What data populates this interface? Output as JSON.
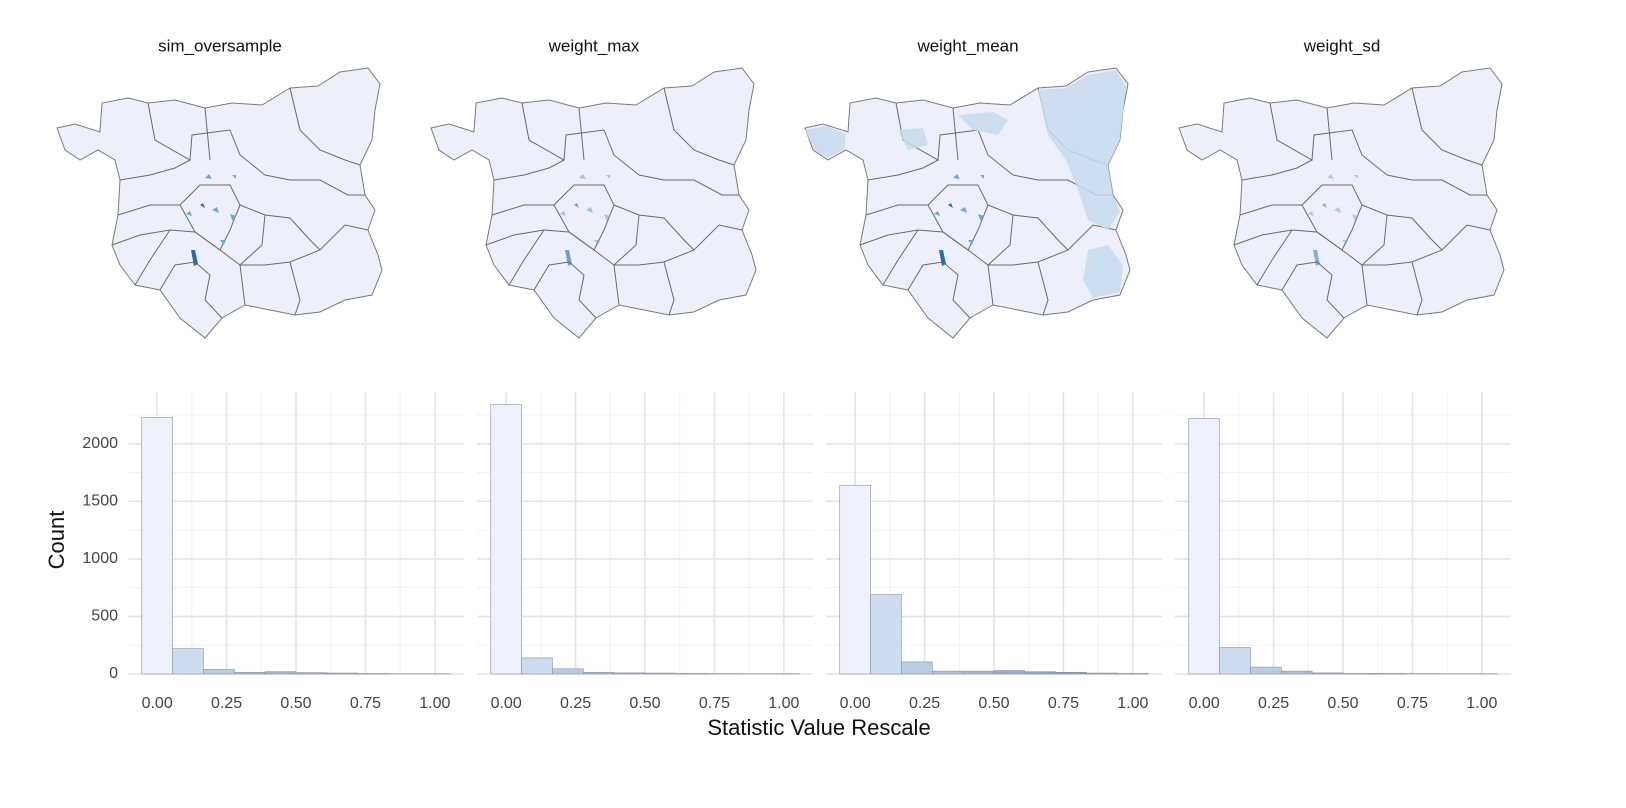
{
  "chart_data": [
    {
      "type": "histogram",
      "title": "sim_oversample",
      "ylabel": "Count",
      "xlabel": "Statistic Value Rescale",
      "bins": [
        -0.0556,
        0.0556,
        0.1667,
        0.2778,
        0.3889,
        0.5,
        0.6111,
        0.7222,
        0.8333,
        0.9444,
        1.0556
      ],
      "values": [
        2230,
        220,
        40,
        15,
        20,
        12,
        8,
        4,
        2,
        2
      ],
      "colors": [
        "#eef0fb",
        "#cddcee",
        "#b6cde3",
        "#a6c2dc",
        "#9cb9d6",
        "#8fb0d0",
        "#85a7ca",
        "#7b9fc5",
        "#7197c0",
        "#678fbb"
      ],
      "xlim": [
        -0.105,
        1.105
      ],
      "ylim": [
        0,
        2450
      ],
      "xticks": [
        {
          "value": 0,
          "label": "0.00"
        },
        {
          "value": 0.25,
          "label": "0.25"
        },
        {
          "value": 0.5,
          "label": "0.50"
        },
        {
          "value": 0.75,
          "label": "0.75"
        },
        {
          "value": 1,
          "label": "1.00"
        }
      ],
      "yticks": [
        0,
        500,
        1000,
        1500,
        2000
      ],
      "xminor": [
        0.125,
        0.375,
        0.625,
        0.875
      ],
      "yminor": [
        250,
        750,
        1250,
        1750,
        2250
      ],
      "ytick_labels": true,
      "grid": true
    },
    {
      "type": "histogram",
      "title": "weight_max",
      "bins": [
        -0.0556,
        0.0556,
        0.1667,
        0.2778,
        0.3889,
        0.5,
        0.6111,
        0.7222,
        0.8333,
        0.9444,
        1.0556
      ],
      "values": [
        2340,
        140,
        45,
        15,
        10,
        8,
        5,
        3,
        2,
        2
      ],
      "colors": [
        "#eef0fb",
        "#cddcee",
        "#b6cde3",
        "#a6c2dc",
        "#9cb9d6",
        "#8fb0d0",
        "#85a7ca",
        "#7b9fc5",
        "#7197c0",
        "#678fbb"
      ],
      "xlim": [
        -0.105,
        1.105
      ],
      "ylim": [
        0,
        2450
      ],
      "xticks": [
        {
          "value": 0,
          "label": "0.00"
        },
        {
          "value": 0.25,
          "label": "0.25"
        },
        {
          "value": 0.5,
          "label": "0.50"
        },
        {
          "value": 0.75,
          "label": "0.75"
        },
        {
          "value": 1,
          "label": "1.00"
        }
      ],
      "yticks": [
        0,
        500,
        1000,
        1500,
        2000
      ],
      "xminor": [
        0.125,
        0.375,
        0.625,
        0.875
      ],
      "yminor": [
        250,
        750,
        1250,
        1750,
        2250
      ],
      "ytick_labels": false,
      "grid": true
    },
    {
      "type": "histogram",
      "title": "weight_mean",
      "bins": [
        -0.0556,
        0.0556,
        0.1667,
        0.2778,
        0.3889,
        0.5,
        0.6111,
        0.7222,
        0.8333,
        0.9444,
        1.0556
      ],
      "values": [
        1640,
        690,
        105,
        25,
        25,
        30,
        20,
        15,
        8,
        5
      ],
      "colors": [
        "#eef0fb",
        "#cddcee",
        "#b6cde3",
        "#a6c2dc",
        "#9cb9d6",
        "#8fb0d0",
        "#85a7ca",
        "#7b9fc5",
        "#7197c0",
        "#678fbb"
      ],
      "xlim": [
        -0.105,
        1.105
      ],
      "ylim": [
        0,
        2450
      ],
      "xticks": [
        {
          "value": 0,
          "label": "0.00"
        },
        {
          "value": 0.25,
          "label": "0.25"
        },
        {
          "value": 0.5,
          "label": "0.50"
        },
        {
          "value": 0.75,
          "label": "0.75"
        },
        {
          "value": 1,
          "label": "1.00"
        }
      ],
      "yticks": [
        0,
        500,
        1000,
        1500,
        2000
      ],
      "xminor": [
        0.125,
        0.375,
        0.625,
        0.875
      ],
      "yminor": [
        250,
        750,
        1250,
        1750,
        2250
      ],
      "ytick_labels": false,
      "grid": true
    },
    {
      "type": "histogram",
      "title": "weight_sd",
      "bins": [
        -0.0556,
        0.0556,
        0.1667,
        0.2778,
        0.3889,
        0.5,
        0.6111,
        0.7222,
        0.8333,
        0.9444,
        1.0556
      ],
      "values": [
        2220,
        230,
        60,
        25,
        10,
        5,
        5,
        3,
        2,
        2
      ],
      "colors": [
        "#eef0fb",
        "#cddcee",
        "#b6cde3",
        "#a6c2dc",
        "#9cb9d6",
        "#8fb0d0",
        "#85a7ca",
        "#7b9fc5",
        "#7197c0",
        "#678fbb"
      ],
      "xlim": [
        -0.105,
        1.105
      ],
      "ylim": [
        0,
        2450
      ],
      "xticks": [
        {
          "value": 0,
          "label": "0.00"
        },
        {
          "value": 0.25,
          "label": "0.25"
        },
        {
          "value": 0.5,
          "label": "0.50"
        },
        {
          "value": 0.75,
          "label": "0.75"
        },
        {
          "value": 1,
          "label": "1.00"
        }
      ],
      "yticks": [
        0,
        500,
        1000,
        1500,
        2000
      ],
      "xminor": [
        0.125,
        0.375,
        0.625,
        0.875
      ],
      "yminor": [
        250,
        750,
        1250,
        1750,
        2250
      ],
      "ytick_labels": false,
      "grid": true
    }
  ]
}
